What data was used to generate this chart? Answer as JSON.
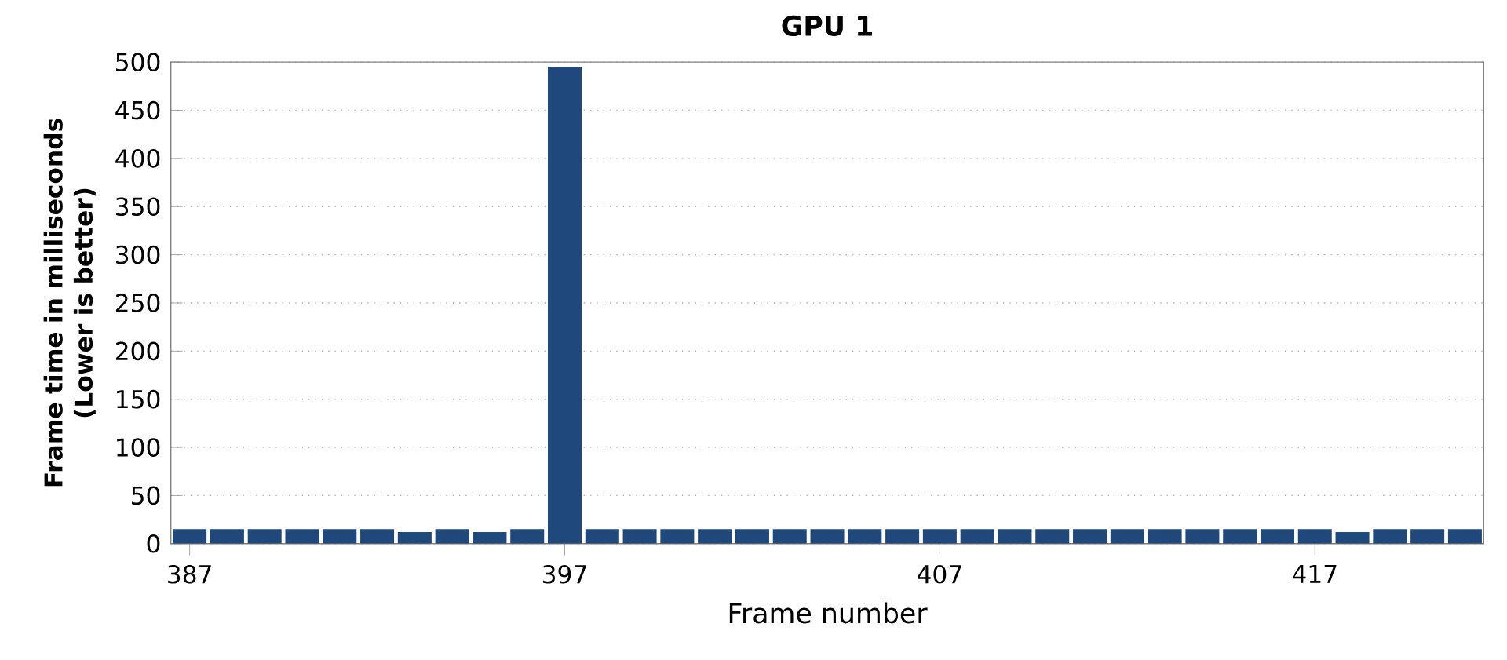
{
  "chart_data": {
    "type": "bar",
    "title": "GPU 1",
    "xlabel": "Frame number",
    "ylabel": "Frame time in milliseconds (Lower is better)",
    "categories": [
      "387",
      null,
      null,
      null,
      null,
      null,
      null,
      null,
      null,
      null,
      "397",
      null,
      null,
      null,
      null,
      null,
      null,
      null,
      null,
      null,
      "407",
      null,
      null,
      null,
      null,
      null,
      null,
      null,
      null,
      null,
      "417",
      null,
      null,
      null,
      null
    ],
    "values": [
      15,
      15,
      15,
      15,
      15,
      15,
      12,
      15,
      12,
      15,
      495,
      15,
      15,
      15,
      15,
      15,
      15,
      15,
      15,
      15,
      15,
      15,
      15,
      15,
      15,
      15,
      15,
      15,
      15,
      15,
      15,
      12,
      15,
      15,
      15
    ],
    "color": "#1f497d",
    "ylim": [
      0,
      500
    ],
    "yticks": [
      0,
      50,
      100,
      150,
      200,
      250,
      300,
      350,
      400,
      450,
      500
    ],
    "grid": "y"
  }
}
